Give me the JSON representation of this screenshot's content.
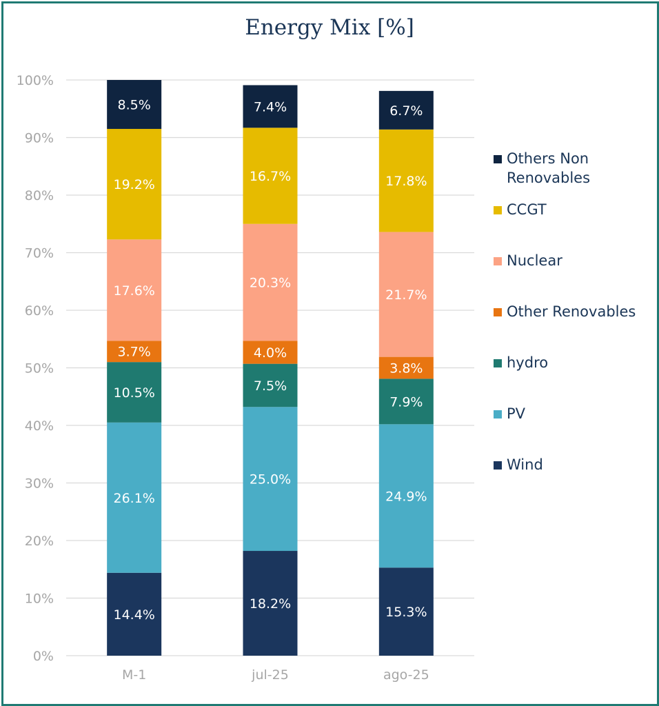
{
  "chart_data": {
    "type": "bar",
    "stacked": true,
    "title": "Energy Mix [%]",
    "xlabel": "",
    "ylabel": "",
    "ylim": [
      0,
      100
    ],
    "y_ticks": [
      "0%",
      "10%",
      "20%",
      "30%",
      "40%",
      "50%",
      "60%",
      "70%",
      "80%",
      "90%",
      "100%"
    ],
    "categories": [
      "M-1",
      "jul-25",
      "ago-25"
    ],
    "series": [
      {
        "name": "Wind",
        "color": "#1b365d",
        "values": [
          14.4,
          18.2,
          15.3
        ],
        "labels": [
          "14.4%",
          "18.2%",
          "15.3%"
        ]
      },
      {
        "name": "PV",
        "color": "#4aadc6",
        "values": [
          26.1,
          25.0,
          24.9
        ],
        "labels": [
          "26.1%",
          "25.0%",
          "24.9%"
        ]
      },
      {
        "name": "hydro",
        "color": "#1f7a70",
        "values": [
          10.5,
          7.5,
          7.9
        ],
        "labels": [
          "10.5%",
          "7.5%",
          "7.9%"
        ]
      },
      {
        "name": "Other Renovables",
        "color": "#e87511",
        "values": [
          3.7,
          4.0,
          3.8
        ],
        "labels": [
          "3.7%",
          "4.0%",
          "3.8%"
        ]
      },
      {
        "name": "Nuclear",
        "color": "#fca384",
        "values": [
          17.6,
          20.3,
          21.7
        ],
        "labels": [
          "17.6%",
          "20.3%",
          "21.7%"
        ]
      },
      {
        "name": "CCGT",
        "color": "#e6bb00",
        "values": [
          19.2,
          16.7,
          17.8
        ],
        "labels": [
          "19.2%",
          "16.7%",
          "17.8%"
        ]
      },
      {
        "name": "Others Non Renovables",
        "color": "#0f2440",
        "values": [
          8.5,
          7.4,
          6.7
        ],
        "labels": [
          "8.5%",
          "7.4%",
          "6.7%"
        ]
      }
    ],
    "legend": {
      "position": "right",
      "order": [
        "Others Non Renovables",
        "CCGT",
        "Nuclear",
        "Other Renovables",
        "hydro",
        "PV",
        "Wind"
      ]
    },
    "grid": true,
    "frame_color": "#1f7a73"
  }
}
